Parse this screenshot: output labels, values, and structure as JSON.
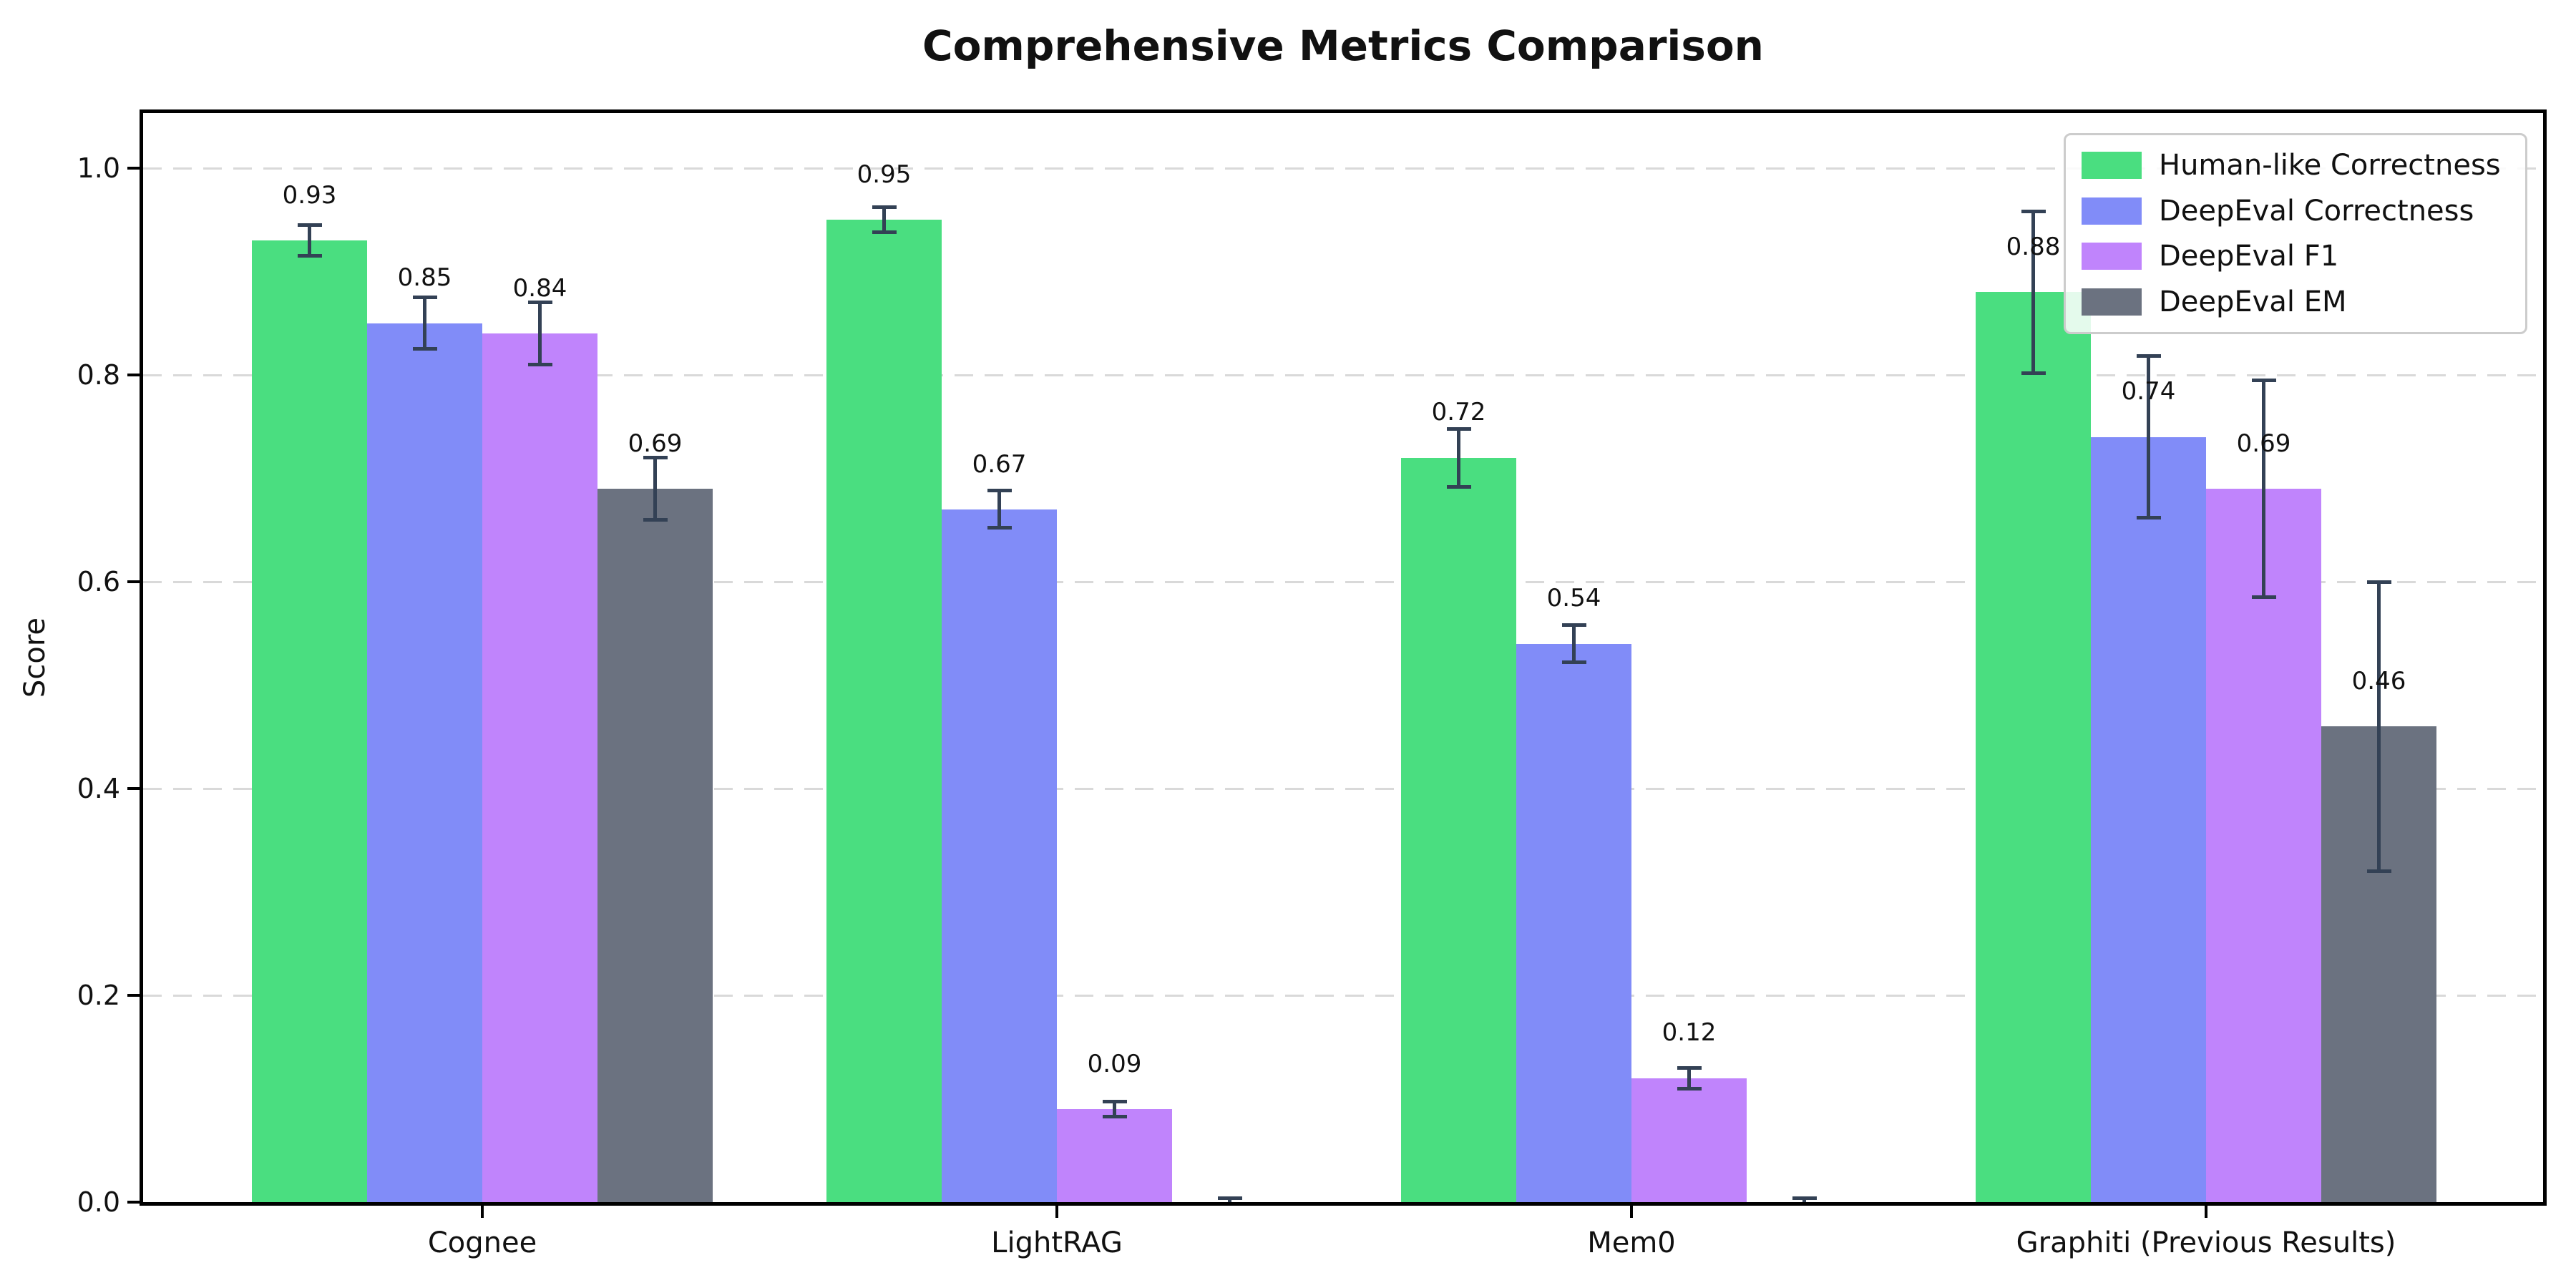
{
  "chart_data": {
    "type": "bar",
    "title": "Comprehensive Metrics Comparison",
    "ylabel": "Score",
    "xlabel": "",
    "categories": [
      "Cognee",
      "LightRAG",
      "Mem0",
      "Graphiti (Previous Results)"
    ],
    "series": [
      {
        "name": "Human-like Correctness",
        "color": "#4ade80",
        "values": [
          0.93,
          0.95,
          0.72,
          0.88
        ],
        "errors": [
          0.015,
          0.012,
          0.028,
          0.078
        ],
        "labels": [
          "0.93",
          "0.95",
          "0.72",
          "0.88"
        ]
      },
      {
        "name": "DeepEval Correctness",
        "color": "#818cf8",
        "values": [
          0.85,
          0.67,
          0.54,
          0.74
        ],
        "errors": [
          0.025,
          0.018,
          0.018,
          0.078
        ],
        "labels": [
          "0.85",
          "0.67",
          "0.54",
          "0.74"
        ]
      },
      {
        "name": "DeepEval F1",
        "color": "#c084fc",
        "values": [
          0.84,
          0.09,
          0.12,
          0.69
        ],
        "errors": [
          0.03,
          0.007,
          0.01,
          0.105
        ],
        "labels": [
          "0.84",
          "0.09",
          "0.12",
          "0.69"
        ]
      },
      {
        "name": "DeepEval EM",
        "color": "#6b7280",
        "values": [
          0.69,
          0.0,
          0.0,
          0.46
        ],
        "errors": [
          0.03,
          0.004,
          0.004,
          0.14
        ],
        "labels": [
          "0.69",
          "",
          "",
          "0.46"
        ]
      }
    ],
    "yticks": [
      "0.0",
      "0.2",
      "0.4",
      "0.6",
      "0.8",
      "1.0"
    ],
    "ylim": [
      0,
      1.05
    ],
    "grid": "horizontal-dashed",
    "legend_position": "upper-right",
    "colors": {
      "error_bar": "#334155",
      "gridline": "#d9d9d9",
      "axis": "#000000",
      "background": "#ffffff"
    }
  }
}
